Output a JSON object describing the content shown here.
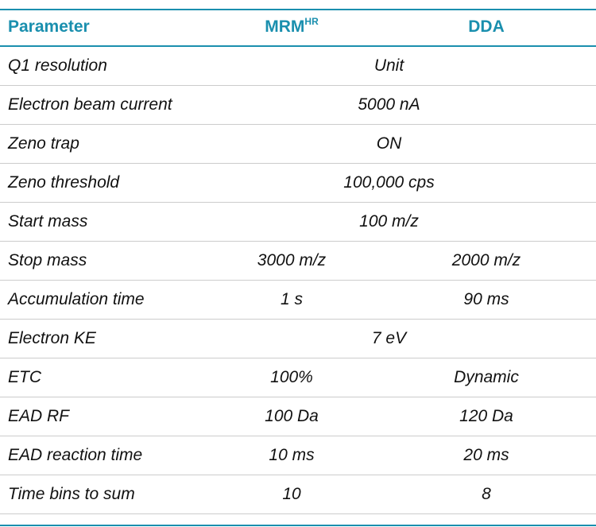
{
  "header": {
    "parameter": "Parameter",
    "mrm": "MRM",
    "mrm_sup": "HR",
    "dda": "DDA"
  },
  "rows": [
    {
      "parameter": "Q1 resolution",
      "shared": "Unit"
    },
    {
      "parameter": "Electron beam current",
      "shared": "5000 nA"
    },
    {
      "parameter": "Zeno trap",
      "shared": "ON"
    },
    {
      "parameter": "Zeno threshold",
      "shared": "100,000 cps"
    },
    {
      "parameter": "Start mass",
      "shared": "100 m/z"
    },
    {
      "parameter": "Stop mass",
      "mrm": "3000 m/z",
      "dda": "2000 m/z"
    },
    {
      "parameter": "Accumulation time",
      "mrm": "1 s",
      "dda": "90 ms"
    },
    {
      "parameter": "Electron KE",
      "shared": "7 eV"
    },
    {
      "parameter": "ETC",
      "mrm": "100%",
      "dda": "Dynamic"
    },
    {
      "parameter": "EAD RF",
      "mrm": "100 Da",
      "dda": "120 Da"
    },
    {
      "parameter": "EAD reaction time",
      "mrm": "10 ms",
      "dda": "20 ms"
    },
    {
      "parameter": "Time bins to sum",
      "mrm": "10",
      "dda": "8"
    }
  ],
  "colors": {
    "accent": "#1a8fae",
    "divider": "#cccccc"
  }
}
